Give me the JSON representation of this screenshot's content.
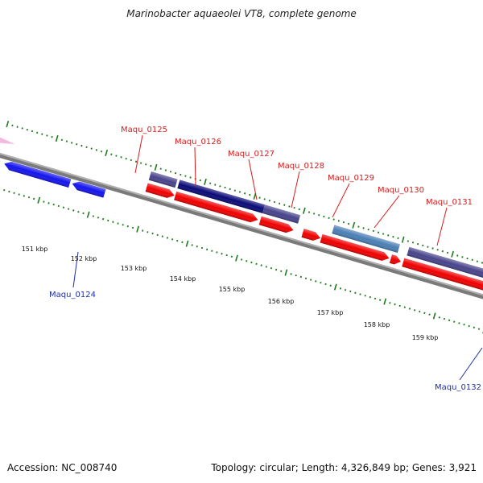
{
  "title": "Marinobacter aquaeolei VT8, complete genome",
  "footer": {
    "accession": "Accession: NC_008740",
    "summary": "Topology: circular; Length: 4,326,849 bp; Genes: 3,921"
  },
  "colors": {
    "backbone": "#7a7a7a",
    "tick": "#1e7a1e",
    "label_top": "#d81b1b",
    "label_bottom": "#1f2fa8",
    "red": "#f00000",
    "blue": "#1414ee",
    "navy": "#0a0a78",
    "slate": "#48448c",
    "steel": "#4a7fb5",
    "pink": "#f5b8e0"
  },
  "scale": {
    "start_kbp": 150,
    "end_kbp": 160,
    "labels": [
      "151 kbp",
      "152 kbp",
      "153 kbp",
      "154 kbp",
      "155 kbp",
      "156 kbp",
      "157 kbp",
      "158 kbp",
      "159 kbp"
    ]
  },
  "labels_top": [
    "Maqu_0125",
    "Maqu_0126",
    "Maqu_0127",
    "Maqu_0128",
    "Maqu_0129",
    "Maqu_0130",
    "Maqu_0131"
  ],
  "labels_bottom": [
    "Maqu_0124",
    "Maqu_0132"
  ]
}
